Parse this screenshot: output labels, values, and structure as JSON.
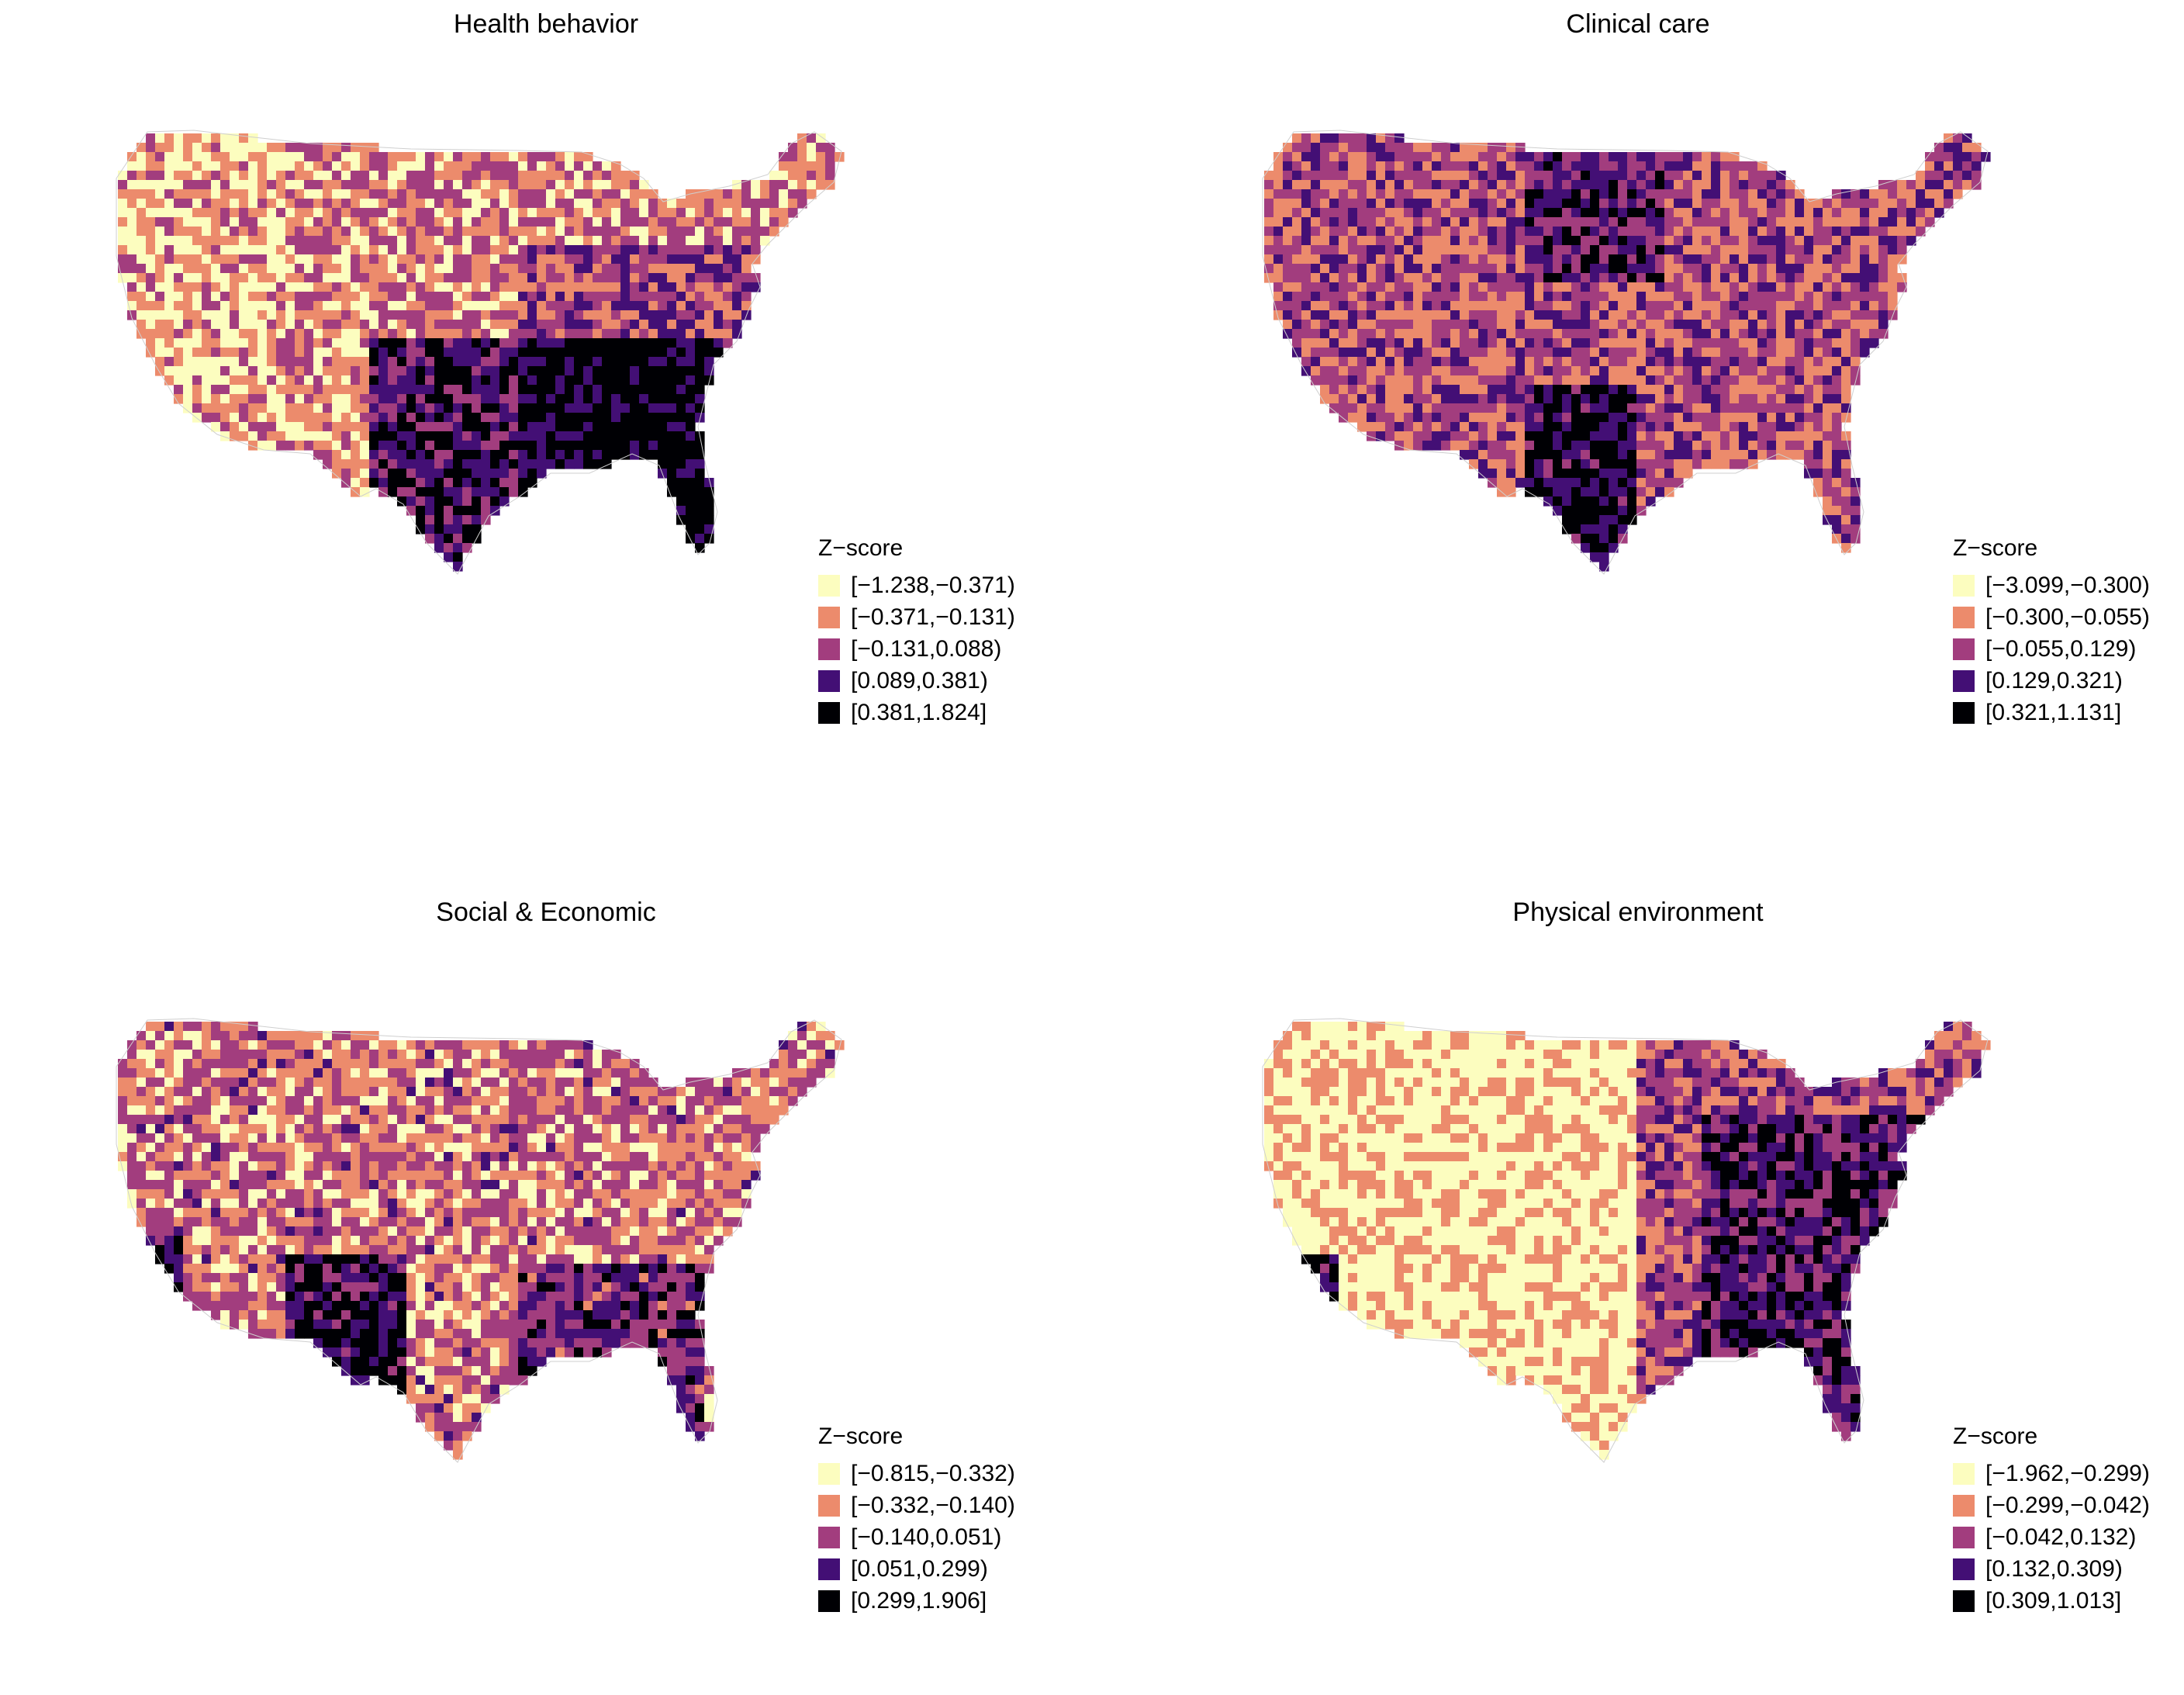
{
  "palette": [
    "#fcfdbf",
    "#ec8b6c",
    "#a23d7e",
    "#430f75",
    "#000004"
  ],
  "panels": [
    {
      "title": "Health behavior",
      "legend_title": "Z−score",
      "bins": [
        "[−1.238,−0.371)",
        "[−0.371,−0.131)",
        "[−0.131,0.088)",
        "[0.089,0.381)",
        "[0.381,1.824]"
      ],
      "pattern": "health"
    },
    {
      "title": "Clinical care",
      "legend_title": "Z−score",
      "bins": [
        "[−3.099,−0.300)",
        "[−0.300,−0.055)",
        "[−0.055,0.129)",
        "[0.129,0.321)",
        "[0.321,1.131]"
      ],
      "pattern": "clinical"
    },
    {
      "title": "Social & Economic",
      "legend_title": "Z−score",
      "bins": [
        "[−0.815,−0.332)",
        "[−0.332,−0.140)",
        "[−0.140,0.051)",
        "[0.051,0.299)",
        "[0.299,1.906]"
      ],
      "pattern": "social"
    },
    {
      "title": "Physical environment",
      "legend_title": "Z−score",
      "bins": [
        "[−1.962,−0.299)",
        "[−0.299,−0.042)",
        "[−0.042,0.132)",
        "[0.132,0.309)",
        "[0.309,1.013]"
      ],
      "pattern": "physical"
    }
  ]
}
